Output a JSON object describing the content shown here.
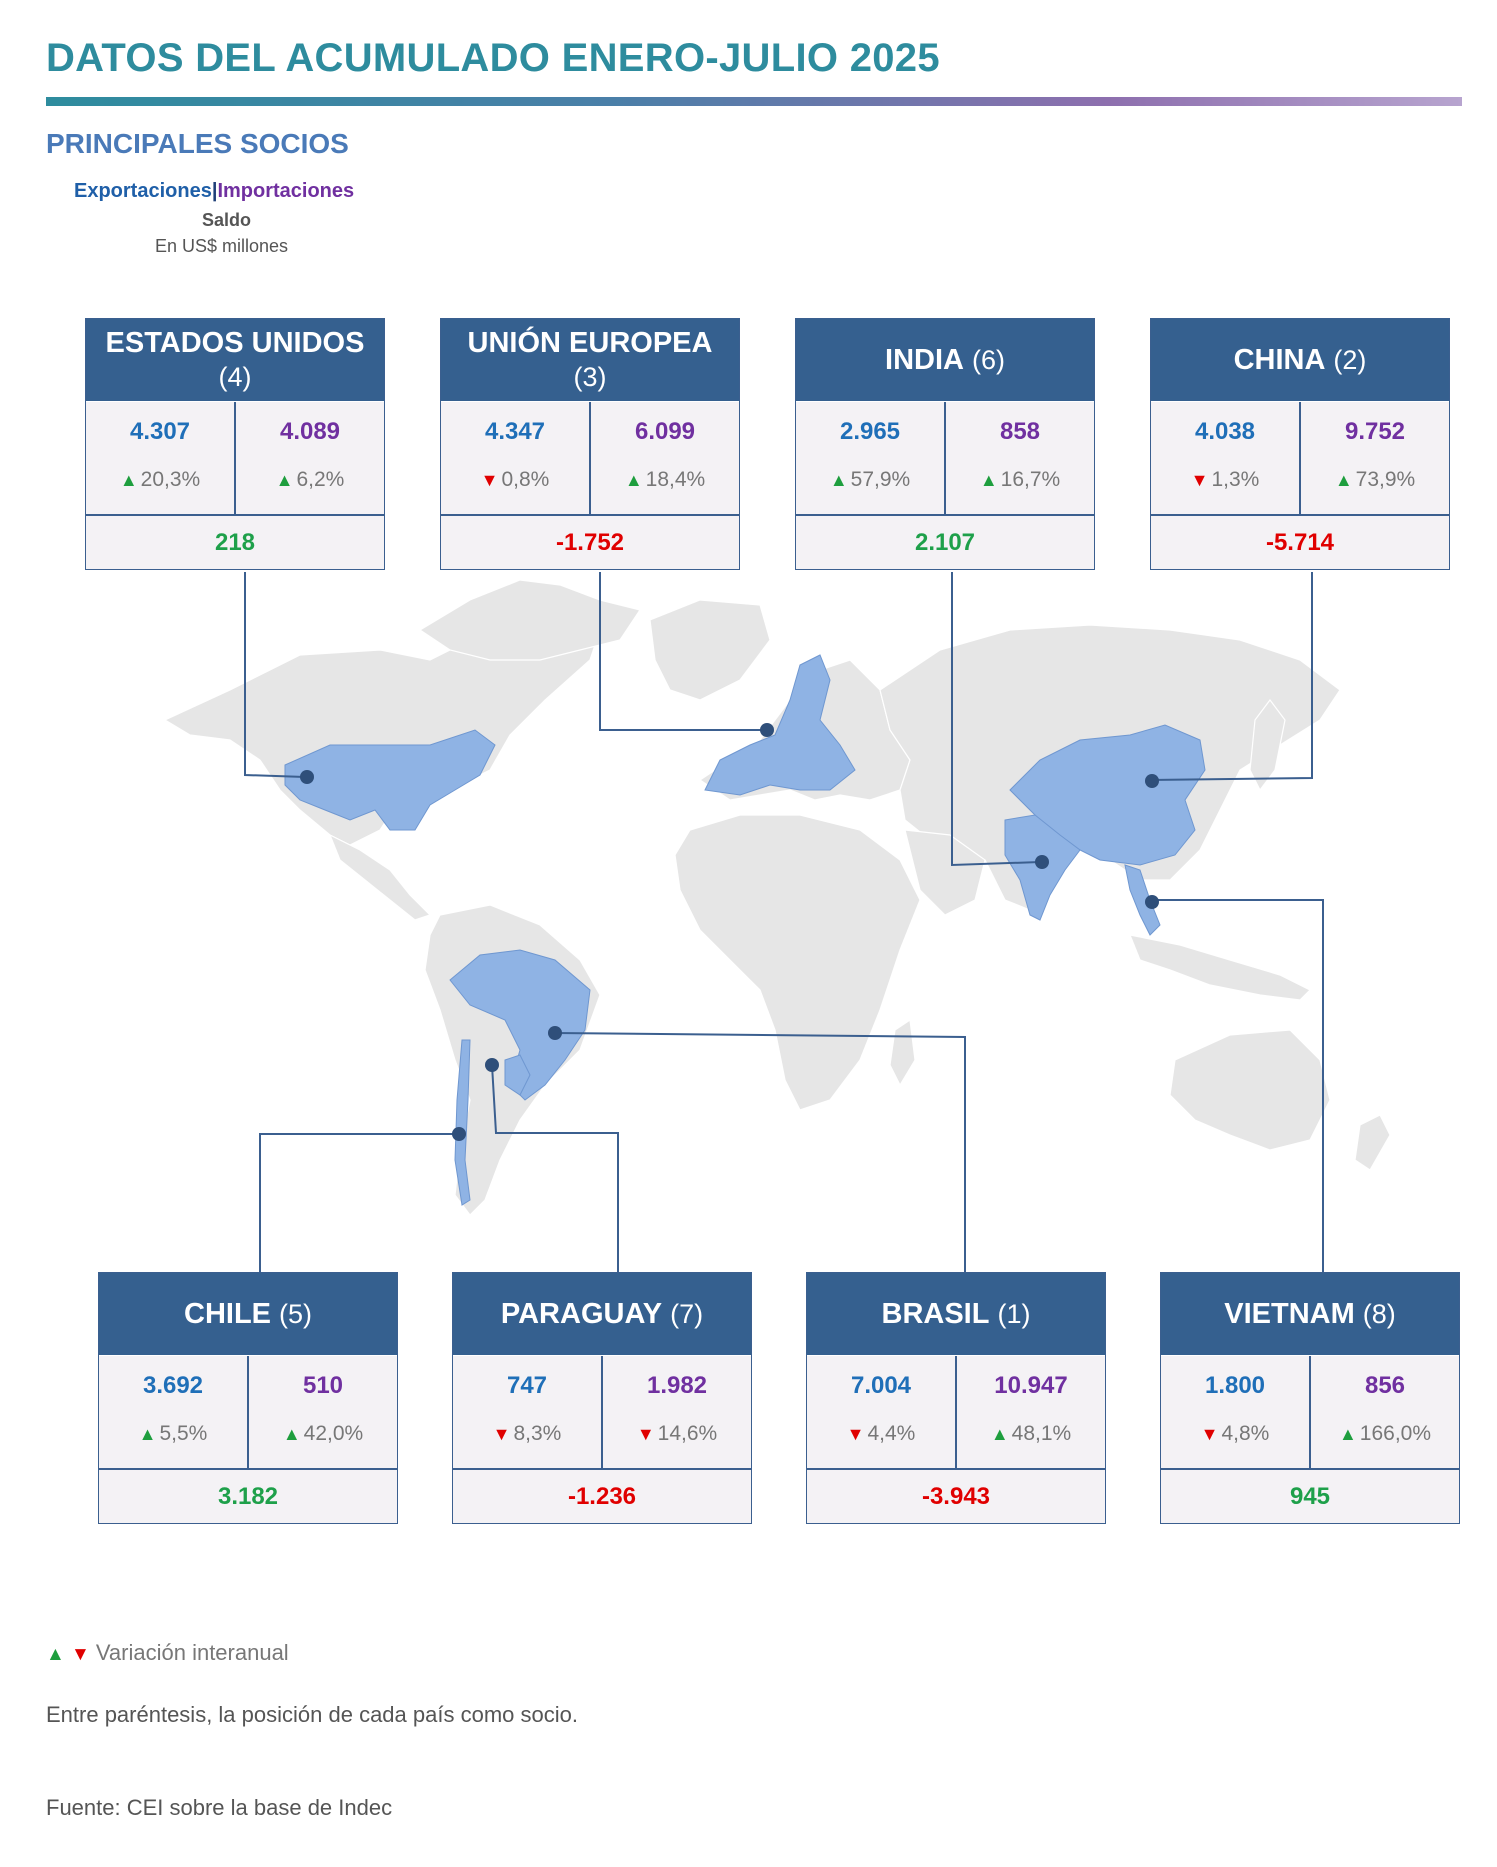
{
  "header": {
    "title": "DATOS DEL ACUMULADO ENERO-JULIO 2025",
    "subtitle": "PRINCIPALES SOCIOS",
    "legend_exports": "Exportaciones",
    "legend_separator": "|",
    "legend_imports": "Importaciones",
    "legend_balance": "Saldo",
    "legend_units": "En US$ millones"
  },
  "colors": {
    "header_bg": "#35608f",
    "exports": "#1f6fb8",
    "imports": "#7030a0",
    "positive": "#1ea04a",
    "negative": "#e00000",
    "map_land": "#e6e6e6",
    "map_highlight": "#8fb3e4"
  },
  "partners": [
    {
      "name": "ESTADOS UNIDOS",
      "position": "(4)",
      "exports": "4.307",
      "imports": "4.089",
      "exports_var": "20,3%",
      "exports_dir": "up",
      "imports_var": "6,2%",
      "imports_dir": "up",
      "balance": "218",
      "balance_sign": "pos"
    },
    {
      "name": "UNIÓN EUROPEA",
      "position": "(3)",
      "exports": "4.347",
      "imports": "6.099",
      "exports_var": "0,8%",
      "exports_dir": "down",
      "imports_var": "18,4%",
      "imports_dir": "up",
      "balance": "-1.752",
      "balance_sign": "neg"
    },
    {
      "name": "INDIA",
      "position": "(6)",
      "exports": "2.965",
      "imports": "858",
      "exports_var": "57,9%",
      "exports_dir": "up",
      "imports_var": "16,7%",
      "imports_dir": "up",
      "balance": "2.107",
      "balance_sign": "pos"
    },
    {
      "name": "CHINA",
      "position": "(2)",
      "exports": "4.038",
      "imports": "9.752",
      "exports_var": "1,3%",
      "exports_dir": "down",
      "imports_var": "73,9%",
      "imports_dir": "up",
      "balance": "-5.714",
      "balance_sign": "neg"
    },
    {
      "name": "CHILE",
      "position": "(5)",
      "exports": "3.692",
      "imports": "510",
      "exports_var": "5,5%",
      "exports_dir": "up",
      "imports_var": "42,0%",
      "imports_dir": "up",
      "balance": "3.182",
      "balance_sign": "pos"
    },
    {
      "name": "PARAGUAY",
      "position": "(7)",
      "exports": "747",
      "imports": "1.982",
      "exports_var": "8,3%",
      "exports_dir": "down",
      "imports_var": "14,6%",
      "imports_dir": "down",
      "balance": "-1.236",
      "balance_sign": "neg"
    },
    {
      "name": "BRASIL",
      "position": "(1)",
      "exports": "7.004",
      "imports": "10.947",
      "exports_var": "4,4%",
      "exports_dir": "down",
      "imports_var": "48,1%",
      "imports_dir": "up",
      "balance": "-3.943",
      "balance_sign": "neg"
    },
    {
      "name": "VIETNAM",
      "position": "(8)",
      "exports": "1.800",
      "imports": "856",
      "exports_var": "4,8%",
      "exports_dir": "down",
      "imports_var": "166,0%",
      "imports_dir": "up",
      "balance": "945",
      "balance_sign": "pos"
    }
  ],
  "notes": {
    "variation": "Variación interanual",
    "position_note": "Entre paréntesis, la posición de cada país como socio.",
    "source": "Fuente: CEI sobre la base de Indec"
  }
}
